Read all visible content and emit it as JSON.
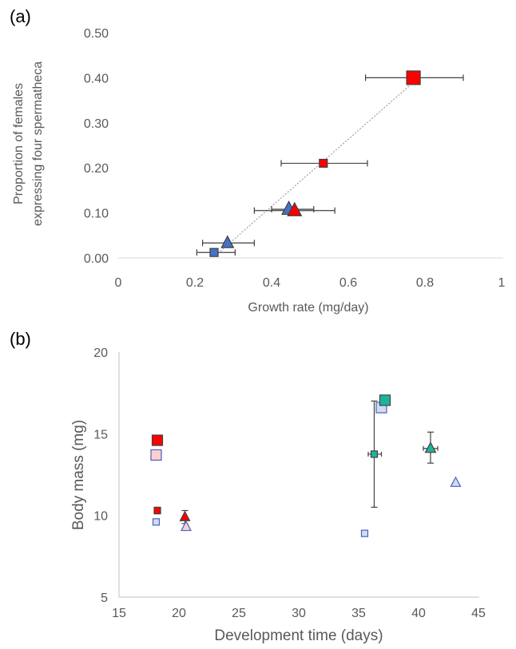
{
  "chart_data": [
    {
      "panel_label": "(a)",
      "type": "scatter",
      "xlabel": "Growth rate (mg/day)",
      "ylabel": [
        "Proportion of females",
        "expressing four spermatheca"
      ],
      "xlim": [
        0,
        1
      ],
      "ylim": [
        0,
        0.5
      ],
      "x_ticks": [
        "0",
        "0.2",
        "0.4",
        "0.6",
        "0.8",
        "1"
      ],
      "y_ticks": [
        "0.00",
        "0.10",
        "0.20",
        "0.30",
        "0.40",
        "0.50"
      ],
      "trendline": {
        "style": "dotted",
        "color": "#a6a6a6",
        "from": [
          0.26,
          0.01
        ],
        "to": [
          0.77,
          0.39
        ]
      },
      "points": [
        {
          "x": 0.25,
          "y": 0.012,
          "xerr": [
            0.205,
            0.305
          ],
          "marker": "square",
          "size": "small",
          "color": "#4472c4"
        },
        {
          "x": 0.285,
          "y": 0.033,
          "xerr": [
            0.22,
            0.355
          ],
          "marker": "triangle",
          "size": "medium",
          "color": "#4472c4"
        },
        {
          "x": 0.445,
          "y": 0.108,
          "xerr": [
            0.4,
            0.51
          ],
          "marker": "triangle",
          "size": "large",
          "color": "#4472c4"
        },
        {
          "x": 0.46,
          "y": 0.105,
          "xerr": [
            0.355,
            0.565
          ],
          "marker": "triangle",
          "size": "large",
          "color": "#ff0000"
        },
        {
          "x": 0.535,
          "y": 0.21,
          "xerr": [
            0.425,
            0.65
          ],
          "marker": "square",
          "size": "small",
          "color": "#ff0000"
        },
        {
          "x": 0.77,
          "y": 0.4,
          "xerr": [
            0.645,
            0.9
          ],
          "marker": "square",
          "size": "large",
          "color": "#ff0000"
        }
      ]
    },
    {
      "panel_label": "(b)",
      "type": "scatter",
      "xlabel": "Development time (days)",
      "ylabel": "Body mass (mg)",
      "xlim": [
        15,
        45
      ],
      "ylim": [
        5,
        20
      ],
      "x_ticks": [
        "15",
        "20",
        "25",
        "30",
        "35",
        "40",
        "45"
      ],
      "y_ticks": [
        "5",
        "10",
        "15",
        "20"
      ],
      "points": [
        {
          "x": 18.2,
          "y": 14.6,
          "marker": "square",
          "size": "large",
          "color": "#ff0000"
        },
        {
          "x": 18.1,
          "y": 13.7,
          "marker": "square",
          "size": "large",
          "color": "#f8d0d0"
        },
        {
          "x": 18.2,
          "y": 10.3,
          "yerr": [
            10.1,
            10.5
          ],
          "marker": "square",
          "size": "small",
          "color": "#ff0000"
        },
        {
          "x": 18.1,
          "y": 9.6,
          "marker": "square",
          "size": "small",
          "color": "#cfdcf2"
        },
        {
          "x": 20.5,
          "y": 9.9,
          "yerr": [
            9.5,
            10.3
          ],
          "marker": "triangle",
          "size": "medium",
          "color": "#ff0000"
        },
        {
          "x": 20.6,
          "y": 9.3,
          "marker": "triangle",
          "size": "medium",
          "color": "#f8d0d0"
        },
        {
          "x": 35.5,
          "y": 8.9,
          "marker": "square",
          "size": "small",
          "color": "#cfdcf2"
        },
        {
          "x": 36.3,
          "y": 13.75,
          "xerr": [
            35.8,
            36.9
          ],
          "yerr": [
            10.5,
            17.0
          ],
          "marker": "square",
          "size": "small",
          "color": "#1eb39c"
        },
        {
          "x": 36.9,
          "y": 16.6,
          "marker": "square",
          "size": "large",
          "color": "#cfdcf2"
        },
        {
          "x": 37.2,
          "y": 17.05,
          "xerr": [
            36.8,
            37.6
          ],
          "marker": "square",
          "size": "large",
          "color": "#1eb39c"
        },
        {
          "x": 41.0,
          "y": 14.1,
          "xerr": [
            40.4,
            41.6
          ],
          "yerr": [
            13.2,
            15.1
          ],
          "marker": "triangle",
          "size": "large",
          "color": "#1eb39c"
        },
        {
          "x": 43.1,
          "y": 12.0,
          "marker": "triangle",
          "size": "medium",
          "color": "#cfdcf2"
        }
      ]
    }
  ]
}
